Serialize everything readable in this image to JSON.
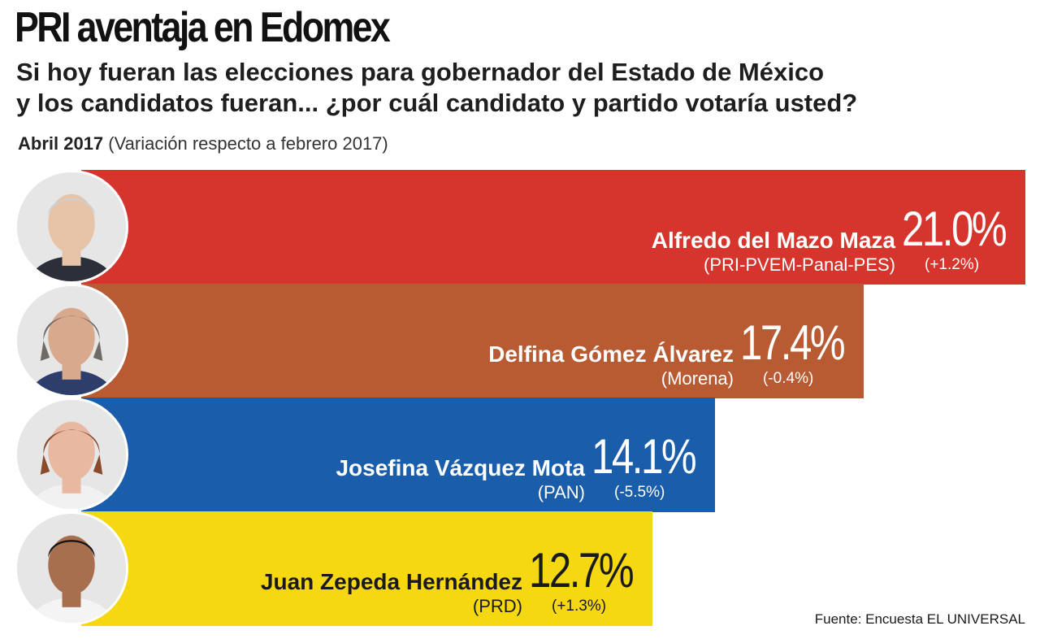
{
  "header": {
    "title": "PRI aventaja en Edomex",
    "subtitle_line1": "Si hoy fueran las elecciones para gobernador del Estado de México",
    "subtitle_line2": "y los candidatos fueran... ¿por cuál candidato y partido votaría usted?",
    "period": "Abril 2017",
    "variation_note": "(Variación respecto a febrero 2017)"
  },
  "source": "Fuente: Encuesta EL UNIVERSAL",
  "chart_data": {
    "type": "bar",
    "orientation": "horizontal",
    "title": "PRI aventaja en Edomex",
    "xlabel": "",
    "ylabel": "",
    "xlim": [
      0,
      21.0
    ],
    "unit": "%",
    "categories": [
      "Alfredo del Mazo Maza",
      "Delfina Gómez Álvarez",
      "Josefina Vázquez Mota",
      "Juan Zepeda Hernández"
    ],
    "values": [
      21.0,
      17.4,
      14.1,
      12.7
    ],
    "items": [
      {
        "name": "Alfredo del Mazo Maza",
        "party": "(PRI-PVEM-Panal-PES)",
        "value": 21.0,
        "value_label": "21.0%",
        "change_label": "(+1.2%)",
        "color": "#d5352c",
        "text_color": "#ffffff",
        "photo": "avatar-man-icon"
      },
      {
        "name": "Delfina Gómez Álvarez",
        "party": "(Morena)",
        "value": 17.4,
        "value_label": "17.4%",
        "change_label": "(-0.4%)",
        "color": "#b85b33",
        "text_color": "#ffffff",
        "photo": "avatar-woman-icon"
      },
      {
        "name": "Josefina Vázquez Mota",
        "party": "(PAN)",
        "value": 14.1,
        "value_label": "14.1%",
        "change_label": "(-5.5%)",
        "color": "#1a5dab",
        "text_color": "#ffffff",
        "photo": "avatar-woman-icon"
      },
      {
        "name": "Juan Zepeda Hernández",
        "party": "(PRD)",
        "value": 12.7,
        "value_label": "12.7%",
        "change_label": "(+1.3%)",
        "color": "#f6d812",
        "text_color": "#1a1a1a",
        "photo": "avatar-man-icon"
      }
    ]
  }
}
